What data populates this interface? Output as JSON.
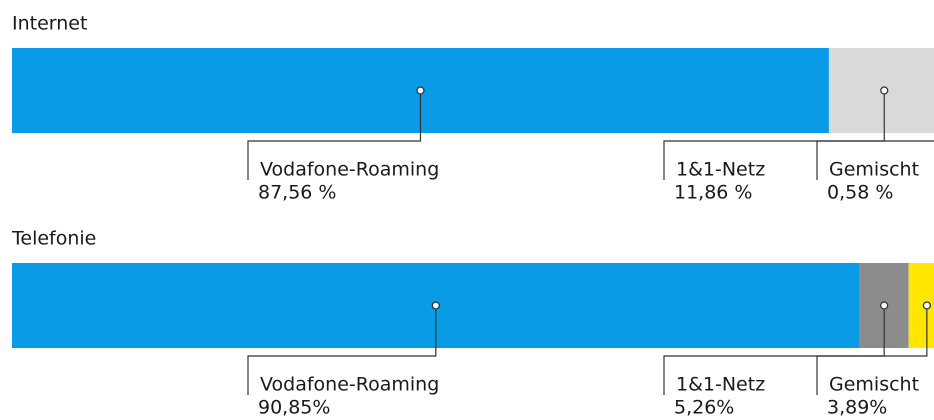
{
  "chart_data": [
    {
      "type": "bar",
      "title": "Internet",
      "categories": [
        "Vodafone-Roaming",
        "1&1-Netz",
        "Gemischt"
      ],
      "values": [
        87.56,
        11.86,
        0.58
      ],
      "value_labels": [
        "87,56 %",
        "11,86 %",
        "0,58 %"
      ],
      "colors": [
        "#0a9be6",
        "#d9d9d9",
        "#bdbdbd"
      ]
    },
    {
      "type": "bar",
      "title": "Telefonie",
      "categories": [
        "Vodafone-Roaming",
        "1&1-Netz",
        "Gemischt"
      ],
      "values": [
        90.85,
        5.26,
        3.89
      ],
      "value_labels": [
        "90,85%",
        "5,26%",
        "3,89%"
      ],
      "colors": [
        "#0a9be6",
        "#8c8c8c",
        "#ffe600"
      ]
    }
  ]
}
